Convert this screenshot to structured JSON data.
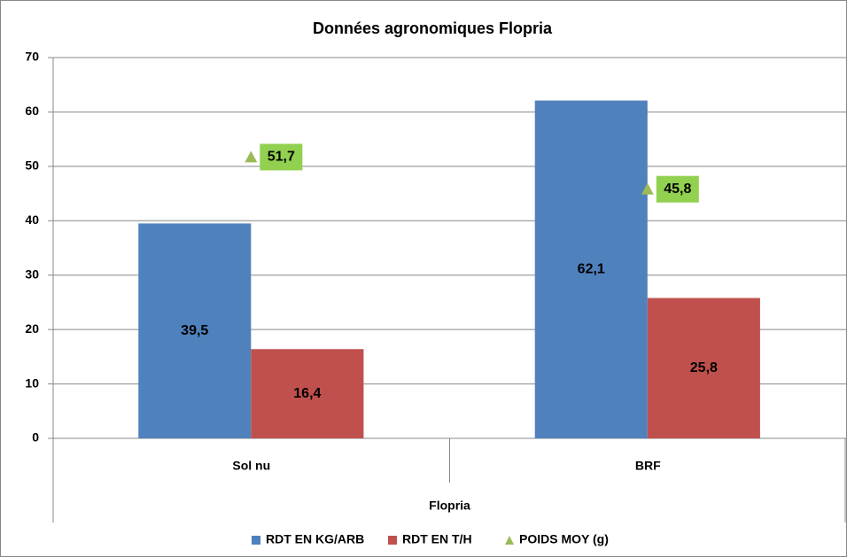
{
  "chart_data": {
    "type": "bar",
    "title": "Données agronomiques Flopria",
    "xlabel": "Flopria",
    "categories": [
      "Sol nu",
      "BRF"
    ],
    "series": [
      {
        "name": "RDT EN KG/ARB",
        "color": "#4f81bd",
        "type": "bar",
        "values": [
          39.5,
          62.1
        ],
        "value_labels": [
          "39,5",
          "62,1"
        ]
      },
      {
        "name": "RDT EN T/H",
        "color": "#c0504d",
        "type": "bar",
        "values": [
          16.4,
          25.8
        ],
        "value_labels": [
          "16,4",
          "25,8"
        ]
      },
      {
        "name": "POIDS MOY (g)",
        "color": "#9bbb59",
        "type": "marker",
        "values": [
          51.7,
          45.8
        ],
        "value_labels": [
          "51,7",
          "45,8"
        ]
      }
    ],
    "ylim": [
      0,
      70
    ],
    "yticks": [
      0,
      10,
      20,
      30,
      40,
      50,
      60,
      70
    ],
    "grid": true,
    "legend": "bottom"
  }
}
